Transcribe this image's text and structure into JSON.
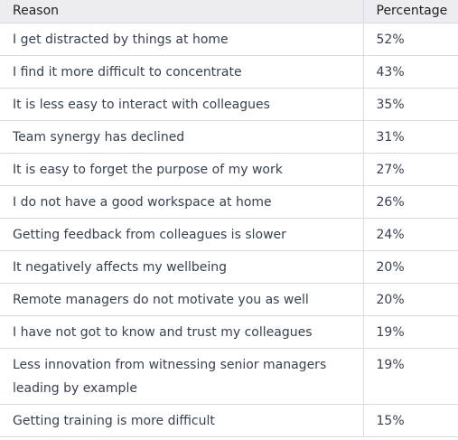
{
  "table": {
    "headers": [
      "Reason",
      "Percentage"
    ],
    "rows": [
      [
        "I get distracted by things at home",
        "52%"
      ],
      [
        "I find it more difficult to concentrate",
        "43%"
      ],
      [
        "It is less easy to interact with colleagues",
        "35%"
      ],
      [
        "Team synergy has declined",
        "31%"
      ],
      [
        "It is easy to forget the purpose of my work",
        "27%"
      ],
      [
        "I do not have a good workspace at home",
        "26%"
      ],
      [
        "Getting feedback from colleagues is slower",
        "24%"
      ],
      [
        "It negatively affects my wellbeing",
        "20%"
      ],
      [
        "Remote managers do not motivate you as well",
        "20%"
      ],
      [
        "I have not got to know and trust my colleagues",
        "19%"
      ],
      [
        "Less innovation from witnessing senior managers leading by example",
        "19%"
      ],
      [
        "Getting training is more difficult",
        "15%"
      ]
    ]
  },
  "colors": {
    "header_bg": "#ececf1",
    "border": "#d9d9e3",
    "text": "#374151"
  }
}
